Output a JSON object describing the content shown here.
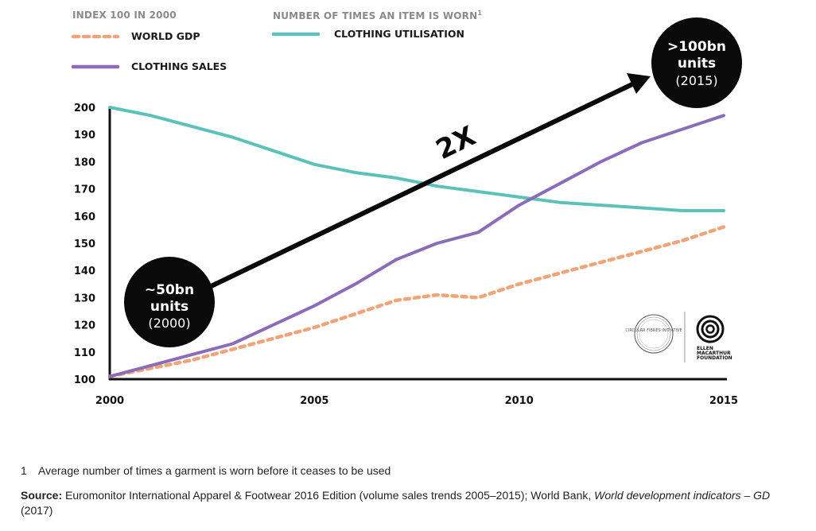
{
  "legend": {
    "left_title": "INDEX 100 IN 2000",
    "right_title": "NUMBER OF TIMES AN ITEM IS WORN",
    "right_title_sup": "1"
  },
  "colors": {
    "gdp": "#f0a47a",
    "sales": "#8a6cb8",
    "utilisation": "#5cc1b8",
    "arrow": "#0a0a0a",
    "bubble": "#0a0a0a"
  },
  "chart_data": {
    "type": "line",
    "x": [
      2000,
      2001,
      2002,
      2003,
      2004,
      2005,
      2006,
      2007,
      2008,
      2009,
      2010,
      2011,
      2012,
      2013,
      2014,
      2015
    ],
    "xticks": [
      "2000",
      "2005",
      "2010",
      "2015"
    ],
    "ylim": [
      100,
      200
    ],
    "yticks": [
      "100",
      "110",
      "120",
      "130",
      "140",
      "150",
      "160",
      "170",
      "180",
      "190",
      "200"
    ],
    "series": [
      {
        "name": "WORLD GDP",
        "key": "gdp",
        "style": "dashed",
        "values": [
          101,
          104,
          107,
          111,
          115,
          119,
          124,
          129,
          131,
          130,
          135,
          139,
          143,
          147,
          151,
          156
        ]
      },
      {
        "name": "CLOTHING SALES",
        "key": "sales",
        "style": "solid",
        "values": [
          101,
          105,
          109,
          113,
          120,
          127,
          135,
          144,
          150,
          154,
          164,
          172,
          180,
          187,
          192,
          197
        ]
      },
      {
        "name": "CLOTHING UTILISATION",
        "key": "utilisation",
        "style": "solid",
        "values": [
          200,
          197,
          193,
          189,
          184,
          179,
          176,
          174,
          171,
          169,
          167,
          165,
          164,
          163,
          162,
          162
        ]
      }
    ],
    "annotations": {
      "start": {
        "line1": "~50bn",
        "line2": "units",
        "line3": "(2000)"
      },
      "end": {
        "line1": ">100bn",
        "line2": "units",
        "line3": "(2015)"
      },
      "multiplier": "2X"
    }
  },
  "logos": {
    "left": "CIRCULAR FIBRES INITIATIVE",
    "right_line1": "ELLEN",
    "right_line2": "MACARTHUR",
    "right_line3": "FOUNDATION"
  },
  "footnote": {
    "number": "1",
    "text": "Average number of times a garment is worn before it ceases to be used"
  },
  "source": {
    "label": "Source:",
    "text": "Euromonitor International Apparel & Footwear 2016 Edition (volume sales trends 2005–2015); World Bank,",
    "italic": "World development indicators – GD",
    "tail": "(2017)"
  }
}
